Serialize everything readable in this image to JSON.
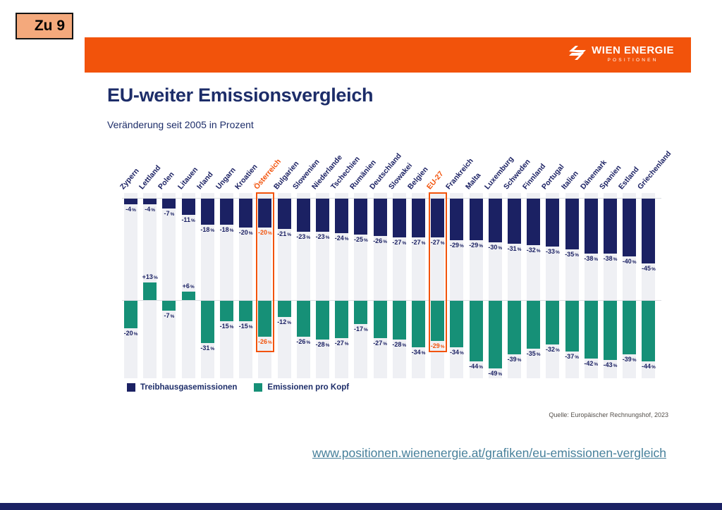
{
  "slide": {
    "tag": "Zu 9",
    "title": "EU-weiter Emissionsvergleich",
    "subtitle": "Veränderung seit 2005 in Prozent",
    "source": "Quelle: Europäischer Rechnungshof, 2023",
    "url": "www.positionen.wienenergie.at/grafiken/eu-emissionen-vergleich"
  },
  "brand": {
    "name": "WIEN ENERGIE",
    "subname": "POSITIONEN",
    "logo_icon": "wien-energie-flash-icon",
    "header_color": "#f2530b",
    "navy": "#1b2163",
    "teal": "#169077",
    "highlight": "#f2530b",
    "strip_gray": "#eff0f4"
  },
  "legend": [
    {
      "label": "Treibhausgasemissionen",
      "color": "#1b2163"
    },
    {
      "label": "Emissionen pro Kopf",
      "color": "#169077"
    }
  ],
  "chart_data": {
    "type": "bar",
    "title": "EU-weiter Emissionsvergleich",
    "subtitle": "Veränderung seit 2005 in Prozent",
    "unit": "%",
    "ylim_top_section": [
      -45,
      0
    ],
    "ylim_bottom_section": [
      -49,
      13
    ],
    "grid": false,
    "legend_position": "bottom-left",
    "categories": [
      "Zypern",
      "Lettland",
      "Polen",
      "Litauen",
      "Irland",
      "Ungarn",
      "Kroatien",
      "Österreich",
      "Bulgarien",
      "Slowenien",
      "Niederlande",
      "Tschechien",
      "Rumänien",
      "Deutschland",
      "Slowakei",
      "Belgien",
      "EU-27",
      "Frankreich",
      "Malta",
      "Luxemburg",
      "Schweden",
      "Finnland",
      "Portugal",
      "Italien",
      "Dänemark",
      "Spanien",
      "Estland",
      "Griechenland"
    ],
    "series": [
      {
        "name": "Treibhausgasemissionen",
        "color": "#1b2163",
        "values": [
          -4,
          -4,
          -7,
          -11,
          -18,
          -18,
          -20,
          -20,
          -21,
          -23,
          -23,
          -24,
          -25,
          -26,
          -27,
          -27,
          -27,
          -29,
          -29,
          -30,
          -31,
          -32,
          -33,
          -35,
          -38,
          -38,
          -40,
          -45
        ]
      },
      {
        "name": "Emissionen pro Kopf",
        "color": "#169077",
        "values": [
          -20,
          13,
          -7,
          6,
          -31,
          -15,
          -15,
          -26,
          -12,
          -26,
          -28,
          -27,
          -17,
          -27,
          -28,
          -34,
          -29,
          -34,
          -44,
          -49,
          -39,
          -35,
          -32,
          -37,
          -42,
          -43,
          -39,
          -44
        ]
      }
    ],
    "highlights": [
      {
        "index": 7,
        "category": "Österreich",
        "top_value_orange": true,
        "bottom_value_orange": true
      },
      {
        "index": 16,
        "category": "EU-27",
        "top_value_orange": false,
        "bottom_value_orange": true
      }
    ]
  }
}
